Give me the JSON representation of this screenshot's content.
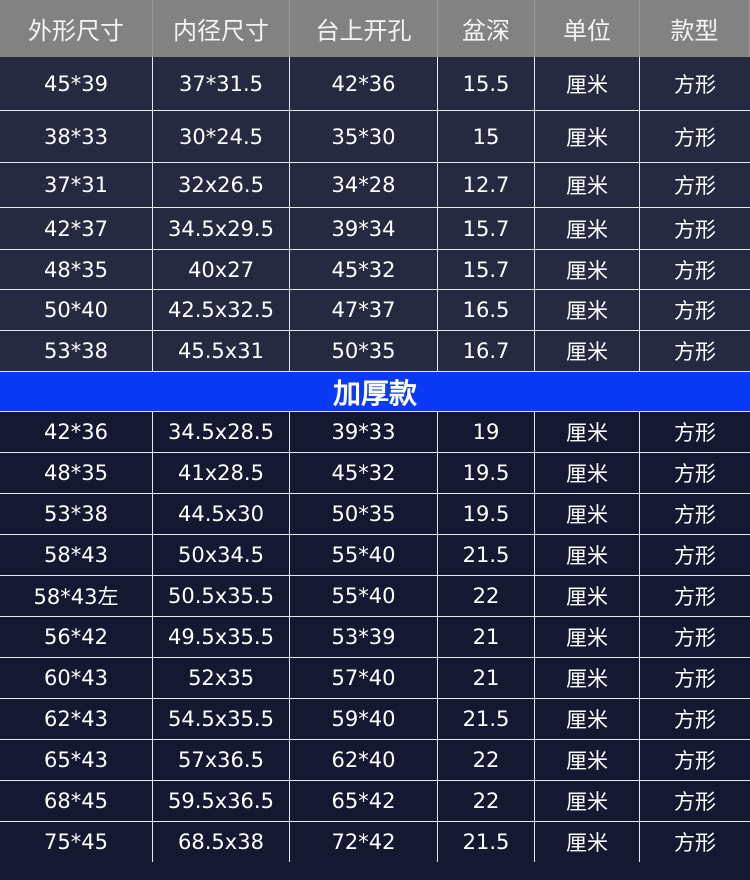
{
  "headers": [
    "外形尺寸",
    "内径尺寸",
    "台上开孔",
    "盆深",
    "单位",
    "款型"
  ],
  "standard_rows": [
    [
      "45*39",
      "37*31.5",
      "42*36",
      "15.5",
      "厘米",
      "方形"
    ],
    [
      "38*33",
      "30*24.5",
      "35*30",
      "15",
      "厘米",
      "方形"
    ],
    [
      "37*31",
      "32x26.5",
      "34*28",
      "12.7",
      "厘米",
      "方形"
    ],
    [
      "42*37",
      "34.5x29.5",
      "39*34",
      "15.7",
      "厘米",
      "方形"
    ],
    [
      "48*35",
      "40x27",
      "45*32",
      "15.7",
      "厘米",
      "方形"
    ],
    [
      "50*40",
      "42.5x32.5",
      "47*37",
      "16.5",
      "厘米",
      "方形"
    ],
    [
      "53*38",
      "45.5x31",
      "50*35",
      "16.7",
      "厘米",
      "方形"
    ]
  ],
  "section_title": "加厚款",
  "thick_rows": [
    [
      "42*36",
      "34.5x28.5",
      "39*33",
      "19",
      "厘米",
      "方形"
    ],
    [
      "48*35",
      "41x28.5",
      "45*32",
      "19.5",
      "厘米",
      "方形"
    ],
    [
      "53*38",
      "44.5x30",
      "50*35",
      "19.5",
      "厘米",
      "方形"
    ],
    [
      "58*43",
      "50x34.5",
      "55*40",
      "21.5",
      "厘米",
      "方形"
    ],
    [
      "58*43左",
      "50.5x35.5",
      "55*40",
      "22",
      "厘米",
      "方形"
    ],
    [
      "56*42",
      "49.5x35.5",
      "53*39",
      "21",
      "厘米",
      "方形"
    ],
    [
      "60*43",
      "52x35",
      "57*40",
      "21",
      "厘米",
      "方形"
    ],
    [
      "62*43",
      "54.5x35.5",
      "59*40",
      "21.5",
      "厘米",
      "方形"
    ],
    [
      "65*43",
      "57x36.5",
      "62*40",
      "22",
      "厘米",
      "方形"
    ],
    [
      "68*45",
      "59.5x36.5",
      "65*42",
      "22",
      "厘米",
      "方形"
    ],
    [
      "75*45",
      "68.5x38",
      "72*42",
      "21.5",
      "厘米",
      "方形"
    ]
  ],
  "colors": {
    "header_bg": "#828282",
    "standard_bg": "#262a40",
    "thick_bg": "#141830",
    "section_band": "#0b3af7"
  }
}
